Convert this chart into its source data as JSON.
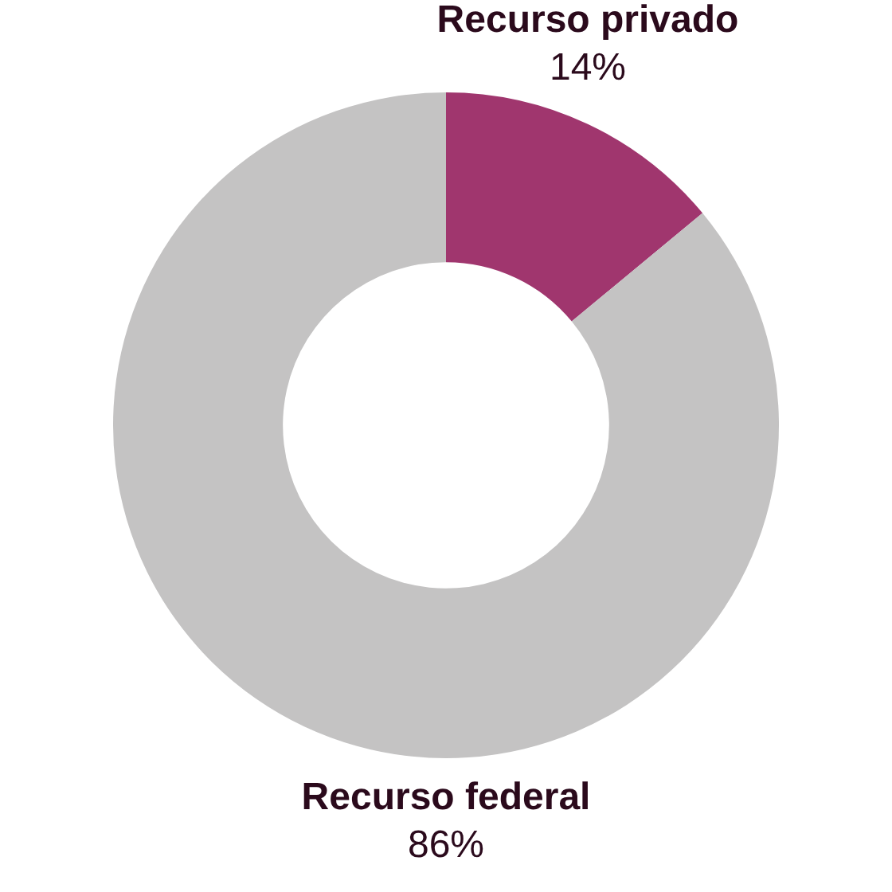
{
  "chart_data": {
    "type": "donut",
    "categories": [
      "Recurso privado",
      "Recurso federal"
    ],
    "values": [
      14,
      86
    ],
    "value_labels": [
      "14%",
      "86%"
    ],
    "colors": [
      "#a0366e",
      "#c4c3c3"
    ],
    "legend": false
  }
}
